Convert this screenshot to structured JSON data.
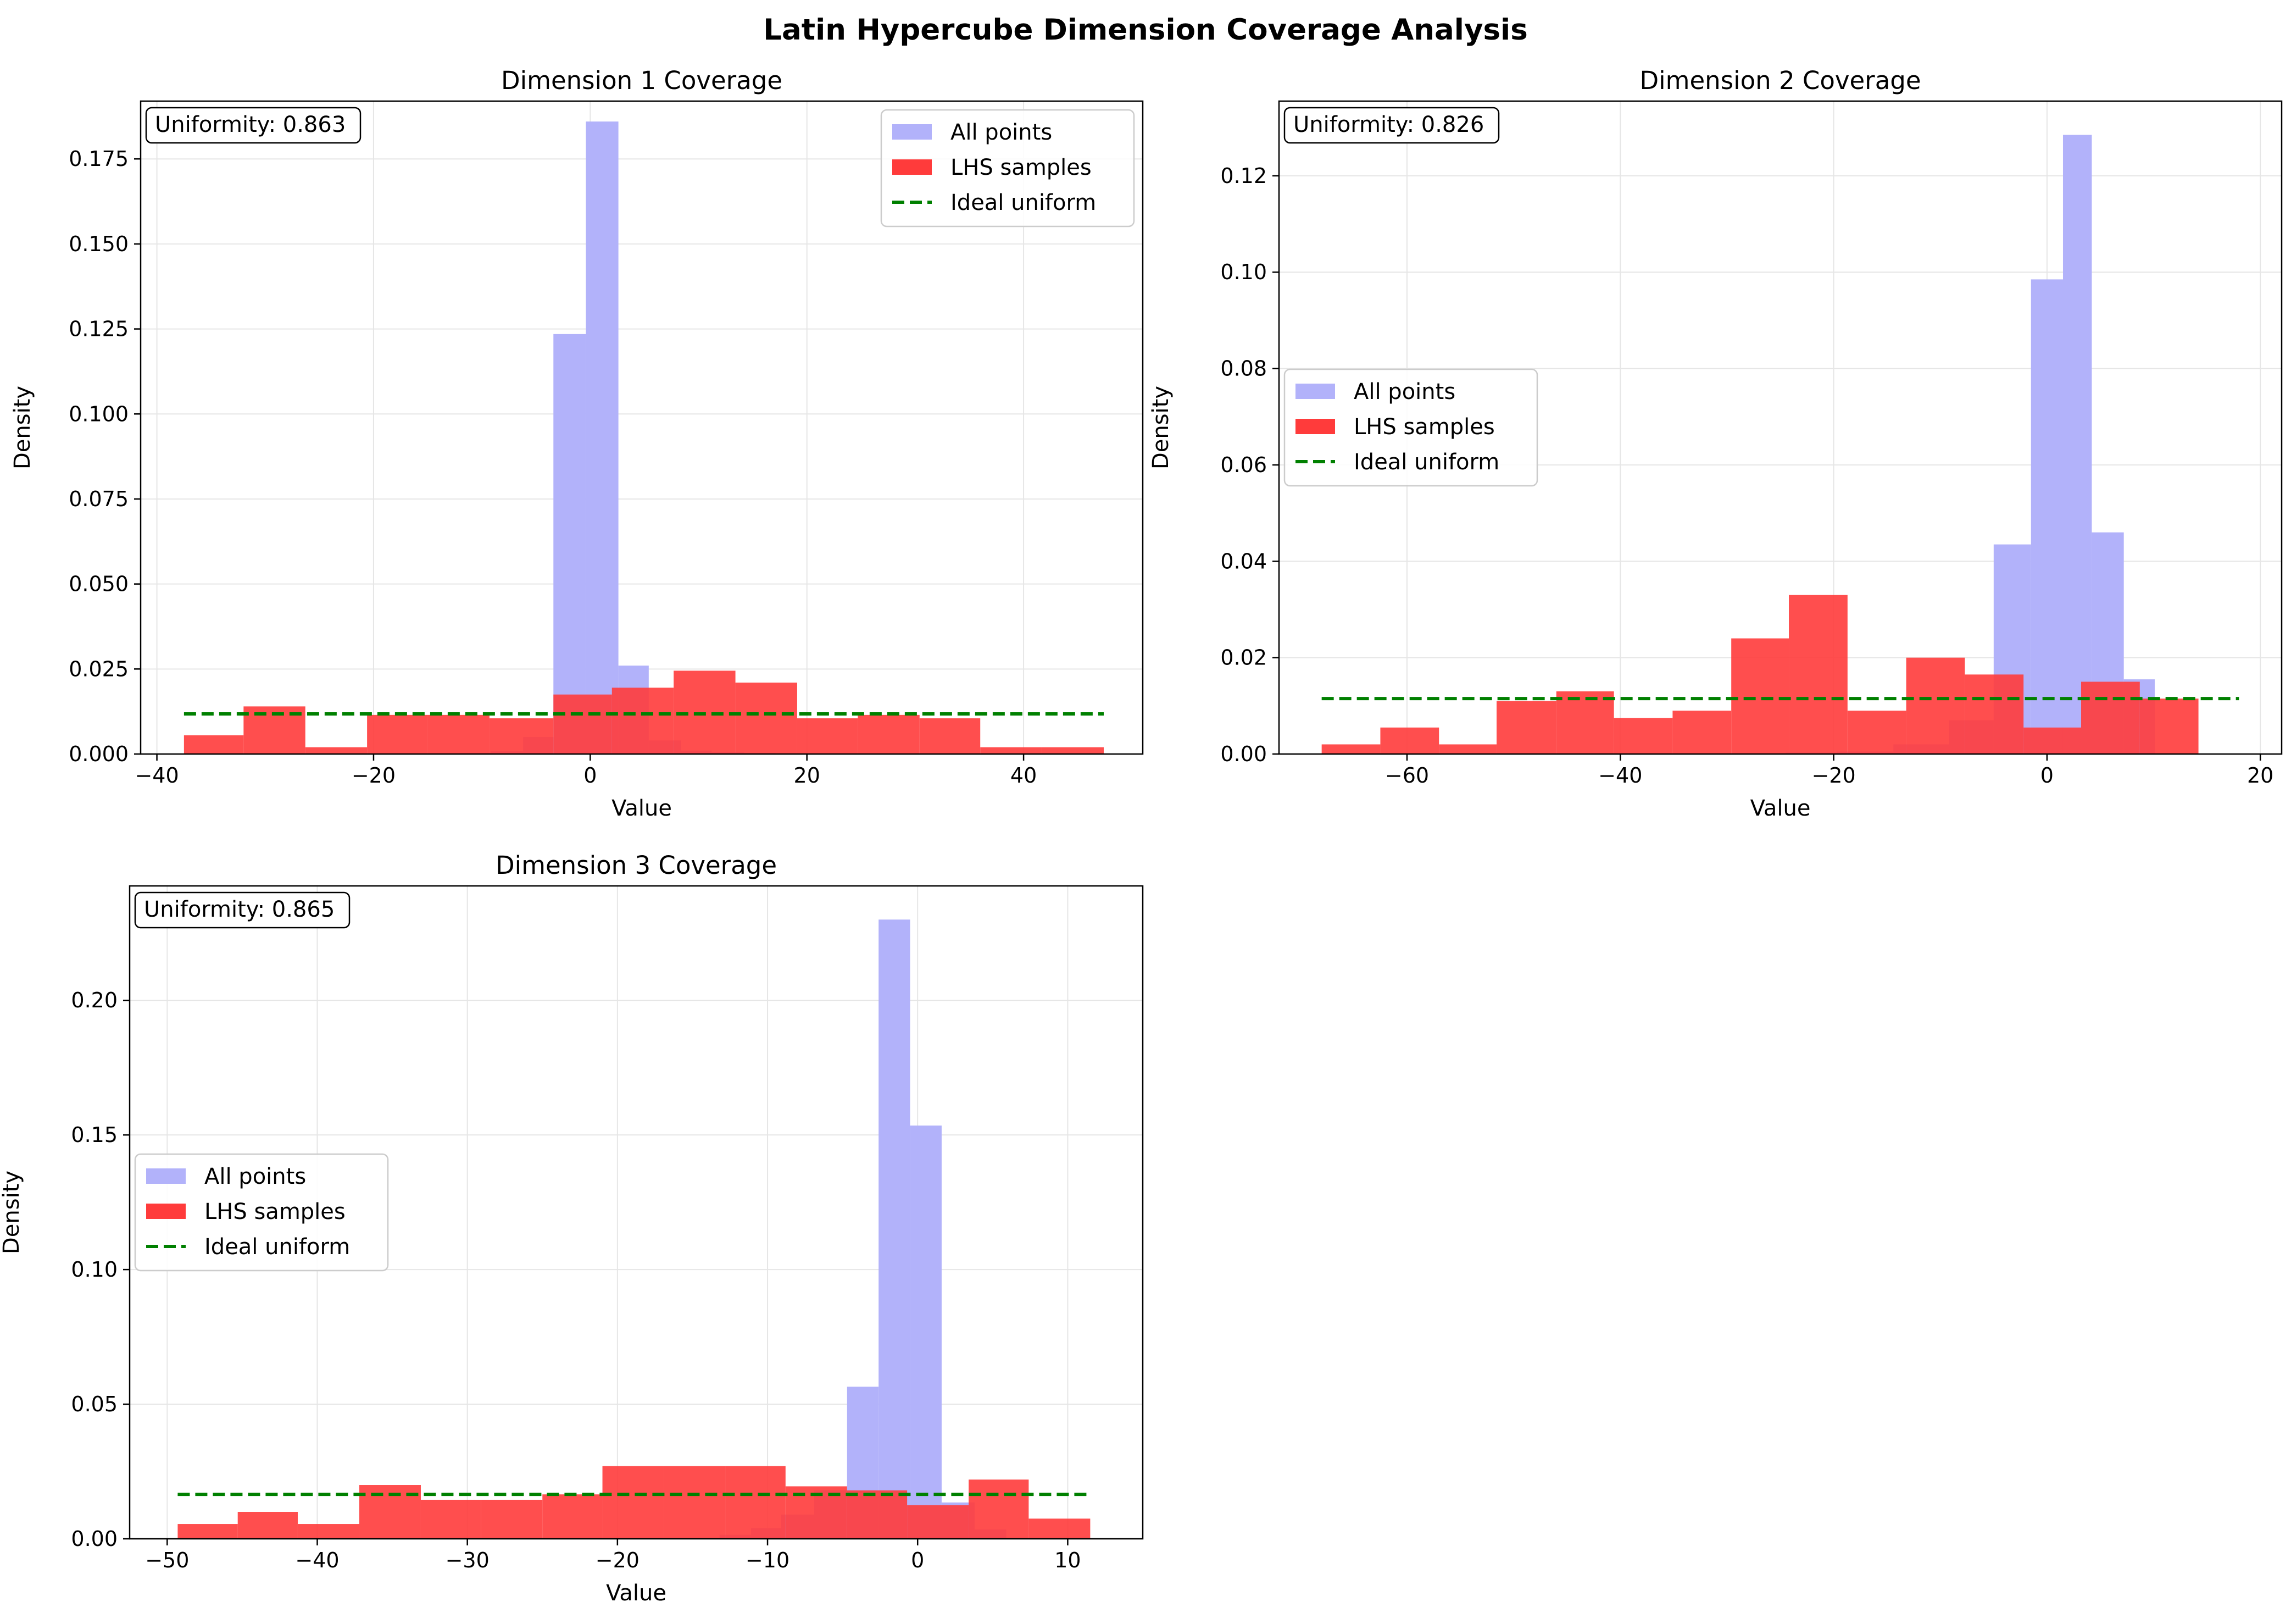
{
  "figure_title": "Latin Hypercube Dimension Coverage Analysis",
  "colors": {
    "all_points": "#b2b2fa",
    "lhs_samples": "#ff3b3b",
    "ideal": "#008000",
    "grid": "#e6e6e6"
  },
  "chart_data": [
    {
      "type": "bar",
      "title": "Dimension 1 Coverage",
      "xlabel": "Value",
      "ylabel": "Density",
      "xlim": [
        -41.5,
        51
      ],
      "ylim": [
        0,
        0.192
      ],
      "xticks": [
        -40,
        -20,
        0,
        20,
        40
      ],
      "xtick_labels": [
        "−40",
        "−20",
        "0",
        "20",
        "40"
      ],
      "yticks": [
        0,
        0.025,
        0.05,
        0.075,
        0.1,
        0.125,
        0.15,
        0.175
      ],
      "ytick_labels": [
        "0.000",
        "0.025",
        "0.050",
        "0.075",
        "0.100",
        "0.125",
        "0.150",
        "0.175"
      ],
      "uniformity": "Uniformity: 0.863",
      "legend_position": "upper right",
      "series": [
        {
          "name": "All points",
          "bin_edges": [
            -12,
            -9.2,
            -6.2,
            -3.4,
            -0.4,
            2.6,
            5.4,
            8.4,
            11.2,
            14.2,
            17.1
          ],
          "values": [
            0.0003,
            0.0008,
            0.005,
            0.1235,
            0.186,
            0.026,
            0.004,
            0.001,
            0.0006,
            0.0003
          ]
        },
        {
          "name": "LHS samples",
          "bin_edges": [
            -37.5,
            -32,
            -26.3,
            -20.6,
            -15,
            -9.3,
            -3.4,
            2,
            7.7,
            13.4,
            19.1,
            24.7,
            30.4,
            36,
            41.7,
            47.4
          ],
          "values": [
            0.0055,
            0.014,
            0.002,
            0.0115,
            0.0115,
            0.0105,
            0.0175,
            0.0195,
            0.0245,
            0.021,
            0.0105,
            0.0115,
            0.0105,
            0.002,
            0.002
          ]
        },
        {
          "name": "Ideal uniform",
          "x": [
            -37.5,
            47.4
          ],
          "y": 0.0118
        }
      ]
    },
    {
      "type": "bar",
      "title": "Dimension 2 Coverage",
      "xlabel": "Value",
      "ylabel": "Density",
      "xlim": [
        -72,
        22
      ],
      "ylim": [
        0,
        0.1355
      ],
      "xticks": [
        -60,
        -40,
        -20,
        0,
        20
      ],
      "xtick_labels": [
        "−60",
        "−40",
        "−20",
        "0",
        "20"
      ],
      "yticks": [
        0,
        0.02,
        0.04,
        0.06,
        0.08,
        0.1,
        0.12
      ],
      "ytick_labels": [
        "0.00",
        "0.02",
        "0.04",
        "0.06",
        "0.08",
        "0.10",
        "0.12"
      ],
      "uniformity": "Uniformity: 0.826",
      "legend_position": "center left",
      "series": [
        {
          "name": "All points",
          "bin_edges": [
            -24.5,
            -19.7,
            -14.4,
            -9.2,
            -5,
            -1.5,
            1.5,
            4.2,
            7.2,
            10.1
          ],
          "values": [
            0.0003,
            0.0005,
            0.002,
            0.007,
            0.0435,
            0.0985,
            0.1285,
            0.046,
            0.0155
          ]
        },
        {
          "name": "LHS samples",
          "bin_edges": [
            -68,
            -62.5,
            -57,
            -51.6,
            -46,
            -40.6,
            -35.1,
            -29.6,
            -24.2,
            -18.7,
            -13.2,
            -7.7,
            -2.2,
            3.2,
            8.7,
            14.2
          ],
          "values": [
            0.002,
            0.0055,
            0.002,
            0.011,
            0.013,
            0.0075,
            0.009,
            0.024,
            0.033,
            0.009,
            0.02,
            0.0165,
            0.0055,
            0.015,
            0.0115
          ]
        },
        {
          "name": "Ideal uniform",
          "x": [
            -68,
            18
          ],
          "y": 0.0115
        }
      ]
    },
    {
      "type": "bar",
      "title": "Dimension 3 Coverage",
      "xlabel": "Value",
      "ylabel": "Density",
      "xlim": [
        -52.5,
        15
      ],
      "ylim": [
        0,
        0.2425
      ],
      "xticks": [
        -50,
        -40,
        -30,
        -20,
        -10,
        0,
        10
      ],
      "xtick_labels": [
        "−50",
        "−40",
        "−30",
        "−20",
        "−10",
        "0",
        "10"
      ],
      "yticks": [
        0,
        0.05,
        0.1,
        0.15,
        0.2
      ],
      "ytick_labels": [
        "0.00",
        "0.05",
        "0.10",
        "0.15",
        "0.20"
      ],
      "uniformity": "Uniformity: 0.865",
      "legend_position": "center left",
      "series": [
        {
          "name": "All points",
          "bin_edges": [
            -13.2,
            -11.1,
            -9.1,
            -6.9,
            -4.7,
            -2.6,
            -0.5,
            1.6,
            3.8,
            5.9
          ],
          "values": [
            0.0015,
            0.004,
            0.009,
            0.018,
            0.0565,
            0.23,
            0.1535,
            0.0135,
            0.0035
          ]
        },
        {
          "name": "LHS samples",
          "bin_edges": [
            -49.3,
            -45.3,
            -41.3,
            -37.2,
            -33.1,
            -29.1,
            -25,
            -21,
            -16.9,
            -12.8,
            -8.8,
            -4.7,
            -0.7,
            3.4,
            7.4,
            11.5
          ],
          "values": [
            0.0055,
            0.01,
            0.0055,
            0.02,
            0.0145,
            0.0145,
            0.0165,
            0.027,
            0.027,
            0.027,
            0.0195,
            0.018,
            0.0125,
            0.022,
            0.0075
          ]
        },
        {
          "name": "Ideal uniform",
          "x": [
            -49.3,
            11.5
          ],
          "y": 0.0165
        }
      ]
    }
  ]
}
